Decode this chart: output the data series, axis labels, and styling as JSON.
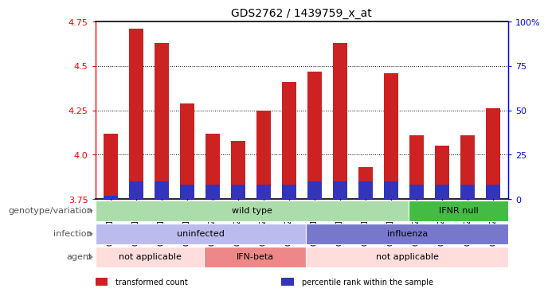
{
  "title": "GDS2762 / 1439759_x_at",
  "samples": [
    "GSM71992",
    "GSM71993",
    "GSM71994",
    "GSM71995",
    "GSM72004",
    "GSM72005",
    "GSM72006",
    "GSM72007",
    "GSM71996",
    "GSM71997",
    "GSM71998",
    "GSM71999",
    "GSM72000",
    "GSM72001",
    "GSM72002",
    "GSM72003"
  ],
  "transformed_count": [
    4.12,
    4.71,
    4.63,
    4.29,
    4.12,
    4.08,
    4.25,
    4.41,
    4.47,
    4.63,
    3.93,
    4.46,
    4.11,
    4.05,
    4.11,
    4.26
  ],
  "percentile_rank": [
    2,
    10,
    10,
    8,
    8,
    8,
    8,
    8,
    10,
    10,
    10,
    10,
    8,
    8,
    8,
    8
  ],
  "ylim_left": [
    3.75,
    4.75
  ],
  "ylim_right": [
    0,
    100
  ],
  "yticks_left": [
    3.75,
    4.0,
    4.25,
    4.5,
    4.75
  ],
  "yticks_right": [
    0,
    25,
    50,
    75,
    100
  ],
  "ytick_labels_right": [
    "0",
    "25",
    "50",
    "75",
    "100%"
  ],
  "bar_color_red": "#cc2222",
  "bar_color_blue": "#3333bb",
  "bar_width": 0.55,
  "annotation_rows": [
    {
      "label": "genotype/variation",
      "segments": [
        {
          "start": 0,
          "end": 12,
          "text": "wild type",
          "color": "#aaddaa"
        },
        {
          "start": 12,
          "end": 16,
          "text": "IFNR null",
          "color": "#44bb44"
        }
      ]
    },
    {
      "label": "infection",
      "segments": [
        {
          "start": 0,
          "end": 8,
          "text": "uninfected",
          "color": "#bbbbee"
        },
        {
          "start": 8,
          "end": 16,
          "text": "influenza",
          "color": "#7777cc"
        }
      ]
    },
    {
      "label": "agent",
      "segments": [
        {
          "start": 0,
          "end": 4,
          "text": "not applicable",
          "color": "#ffdddd"
        },
        {
          "start": 4,
          "end": 8,
          "text": "IFN-beta",
          "color": "#ee8888"
        },
        {
          "start": 8,
          "end": 16,
          "text": "not applicable",
          "color": "#ffdddd"
        }
      ]
    }
  ],
  "legend_items": [
    {
      "color": "#cc2222",
      "label": "transformed count"
    },
    {
      "color": "#3333bb",
      "label": "percentile rank within the sample"
    }
  ],
  "background_color": "#ffffff",
  "title_fontsize": 10,
  "tick_fontsize": 7,
  "annotation_fontsize": 8,
  "label_fontsize": 8
}
